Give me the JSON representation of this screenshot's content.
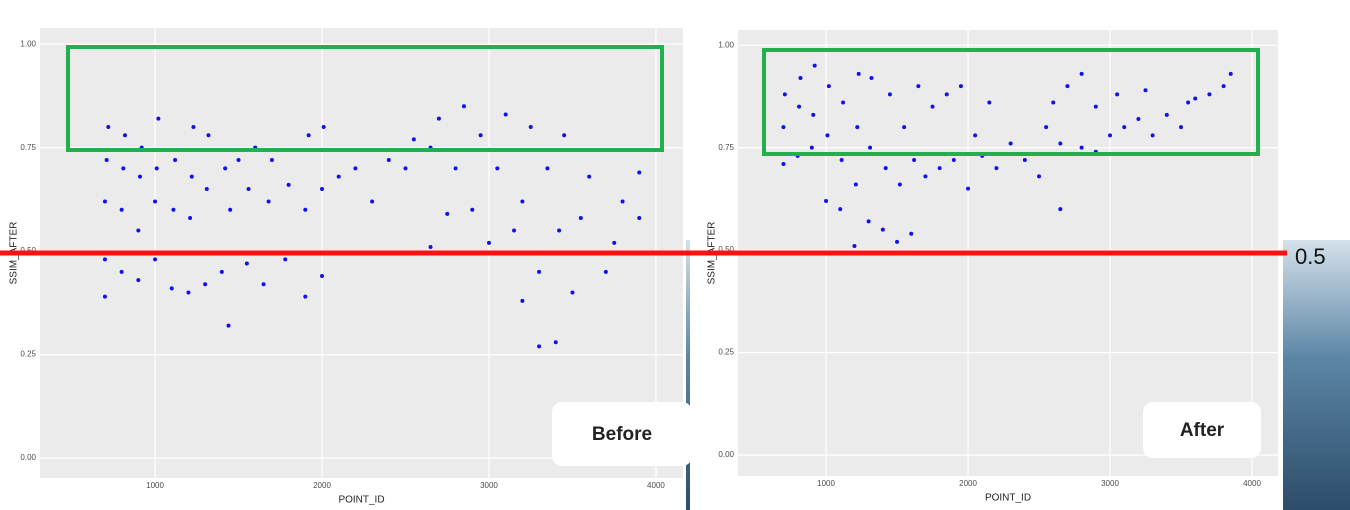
{
  "chart_data": [
    {
      "type": "scatter",
      "label": "Before",
      "x_label": "POINT_ID",
      "y_label": "SSIM_AFTER",
      "color": "#1010f0",
      "grid": true,
      "xlim": [
        311,
        4162
      ],
      "ylim": [
        -0.048,
        1.039
      ],
      "xticks": [
        1000,
        2000,
        3000,
        4000
      ],
      "yticks": [
        {
          "value": 0,
          "label": "0.00"
        },
        {
          "value": 0.25,
          "label": "0.25"
        },
        {
          "value": 0.5,
          "label": "0.50"
        },
        {
          "value": 0.75,
          "label": "0.75"
        },
        {
          "value": 1,
          "label": "1.00"
        }
      ],
      "x": [
        700,
        700,
        700,
        710,
        720,
        800,
        800,
        810,
        820,
        900,
        900,
        910,
        920,
        1000,
        1000,
        1010,
        1020,
        1100,
        1110,
        1120,
        1200,
        1210,
        1220,
        1230,
        1300,
        1310,
        1320,
        1400,
        1420,
        1440,
        1450,
        1500,
        1550,
        1560,
        1600,
        1650,
        1680,
        1700,
        1780,
        1800,
        1900,
        1900,
        1920,
        2000,
        2000,
        2010,
        2100,
        2200,
        2300,
        2400,
        2500,
        2550,
        2650,
        2650,
        2700,
        2750,
        2800,
        2850,
        2900,
        2950,
        3000,
        3050,
        3100,
        3150,
        3200,
        3200,
        3250,
        3300,
        3300,
        3350,
        3400,
        3420,
        3450,
        3500,
        3550,
        3600,
        3700,
        3750,
        3800,
        3900,
        3900
      ],
      "values": [
        0.39,
        0.48,
        0.62,
        0.72,
        0.8,
        0.45,
        0.6,
        0.7,
        0.78,
        0.43,
        0.55,
        0.68,
        0.75,
        0.48,
        0.62,
        0.7,
        0.82,
        0.41,
        0.6,
        0.72,
        0.4,
        0.58,
        0.68,
        0.8,
        0.42,
        0.65,
        0.78,
        0.45,
        0.7,
        0.32,
        0.6,
        0.72,
        0.47,
        0.65,
        0.75,
        0.42,
        0.62,
        0.72,
        0.48,
        0.66,
        0.39,
        0.6,
        0.78,
        0.44,
        0.65,
        0.8,
        0.68,
        0.7,
        0.62,
        0.72,
        0.7,
        0.77,
        0.51,
        0.75,
        0.82,
        0.59,
        0.7,
        0.85,
        0.6,
        0.78,
        0.52,
        0.7,
        0.83,
        0.55,
        0.38,
        0.62,
        0.8,
        0.27,
        0.45,
        0.7,
        0.28,
        0.55,
        0.78,
        0.4,
        0.58,
        0.68,
        0.45,
        0.52,
        0.62,
        0.58,
        0.69
      ]
    },
    {
      "type": "scatter",
      "label": "After",
      "x_label": "POINT_ID",
      "y_label": "SSIM_AFTER",
      "color": "#1010f0",
      "grid": true,
      "xlim": [
        380,
        4183
      ],
      "ylim": [
        -0.051,
        1.037
      ],
      "xticks": [
        1000,
        2000,
        3000,
        4000
      ],
      "yticks": [
        {
          "value": 0,
          "label": "0.00"
        },
        {
          "value": 0.25,
          "label": "0.25"
        },
        {
          "value": 0.5,
          "label": "0.50"
        },
        {
          "value": 0.75,
          "label": "0.75"
        },
        {
          "value": 1,
          "label": "1.00"
        }
      ],
      "x": [
        700,
        700,
        710,
        800,
        810,
        820,
        900,
        910,
        920,
        1000,
        1010,
        1020,
        1100,
        1110,
        1120,
        1200,
        1210,
        1220,
        1230,
        1300,
        1310,
        1320,
        1400,
        1420,
        1450,
        1500,
        1520,
        1550,
        1600,
        1620,
        1650,
        1700,
        1750,
        1800,
        1850,
        1900,
        1950,
        2000,
        2050,
        2100,
        2150,
        2200,
        2300,
        2400,
        2500,
        2550,
        2600,
        2650,
        2650,
        2700,
        2800,
        2800,
        2900,
        2900,
        3000,
        3050,
        3100,
        3200,
        3250,
        3300,
        3400,
        3500,
        3550,
        3600,
        3700,
        3800,
        3850
      ],
      "values": [
        0.71,
        0.8,
        0.88,
        0.73,
        0.85,
        0.92,
        0.75,
        0.83,
        0.95,
        0.62,
        0.78,
        0.9,
        0.6,
        0.72,
        0.86,
        0.51,
        0.66,
        0.8,
        0.93,
        0.57,
        0.75,
        0.92,
        0.55,
        0.7,
        0.88,
        0.52,
        0.66,
        0.8,
        0.54,
        0.72,
        0.9,
        0.68,
        0.85,
        0.7,
        0.88,
        0.72,
        0.9,
        0.65,
        0.78,
        0.73,
        0.86,
        0.7,
        0.76,
        0.72,
        0.68,
        0.8,
        0.86,
        0.6,
        0.76,
        0.9,
        0.75,
        0.93,
        0.74,
        0.85,
        0.78,
        0.88,
        0.8,
        0.82,
        0.89,
        0.78,
        0.83,
        0.8,
        0.86,
        0.87,
        0.88,
        0.9,
        0.93
      ]
    }
  ],
  "reference_label": "0.5"
}
